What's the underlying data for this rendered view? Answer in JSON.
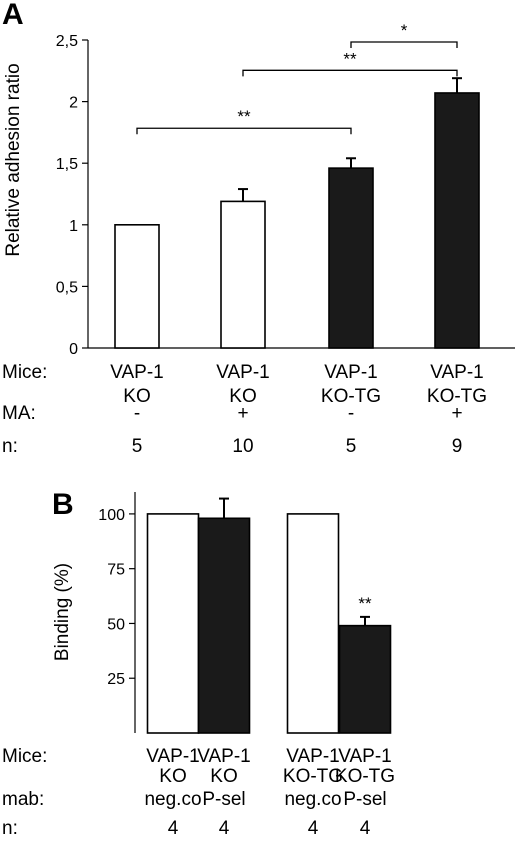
{
  "chart_data": [
    {
      "panel": "A",
      "type": "bar",
      "ylabel": "Relative adhesion ratio",
      "ylim": [
        0,
        2.5
      ],
      "yticks": [
        "0",
        "0,5",
        "1",
        "1,5",
        "2",
        "2,5"
      ],
      "categories": [
        {
          "line1": "VAP-1",
          "line2": "KO"
        },
        {
          "line1": "VAP-1",
          "line2": "KO"
        },
        {
          "line1": "VAP-1",
          "line2": "KO-TG"
        },
        {
          "line1": "VAP-1",
          "line2": "KO-TG"
        }
      ],
      "values": [
        1.0,
        1.19,
        1.46,
        2.07
      ],
      "errors": [
        0,
        0.1,
        0.08,
        0.12
      ],
      "bar_colors": [
        "#ffffff",
        "#ffffff",
        "#1a1a1a",
        "#1a1a1a"
      ],
      "rows": {
        "mice_label": "Mice:",
        "ma_label": "MA:",
        "ma": [
          "-",
          "+",
          "-",
          "+"
        ],
        "n_label": "n:",
        "n": [
          "5",
          "10",
          "5",
          "9"
        ]
      },
      "significance": [
        {
          "from": 0,
          "to": 2,
          "label": "**"
        },
        {
          "from": 1,
          "to": 3,
          "label": "**"
        },
        {
          "from": 2,
          "to": 3,
          "label": "*"
        }
      ]
    },
    {
      "panel": "B",
      "type": "bar",
      "ylabel": "Binding (%)",
      "ylim": [
        0,
        110
      ],
      "yticks": [
        "25",
        "50",
        "75",
        "100"
      ],
      "categories": [
        {
          "line1": "VAP-1",
          "line2": "KO"
        },
        {
          "line1": "VAP-1",
          "line2": "KO"
        },
        {
          "line1": "VAP-1",
          "line2": "KO-TG"
        },
        {
          "line1": "VAP-1",
          "line2": "KO-TG"
        }
      ],
      "values": [
        100,
        98,
        100,
        49
      ],
      "errors": [
        0,
        9,
        0,
        4
      ],
      "bar_colors": [
        "#ffffff",
        "#1a1a1a",
        "#ffffff",
        "#1a1a1a"
      ],
      "rows": {
        "mice_label": "Mice:",
        "mab_label": "mab:",
        "mab": [
          "neg.co",
          "P-sel",
          "neg.co",
          "P-sel"
        ],
        "n_label": "n:",
        "n": [
          "4",
          "4",
          "4",
          "4"
        ]
      },
      "bar_annotations": [
        {
          "index": 3,
          "label": "**"
        }
      ]
    }
  ]
}
